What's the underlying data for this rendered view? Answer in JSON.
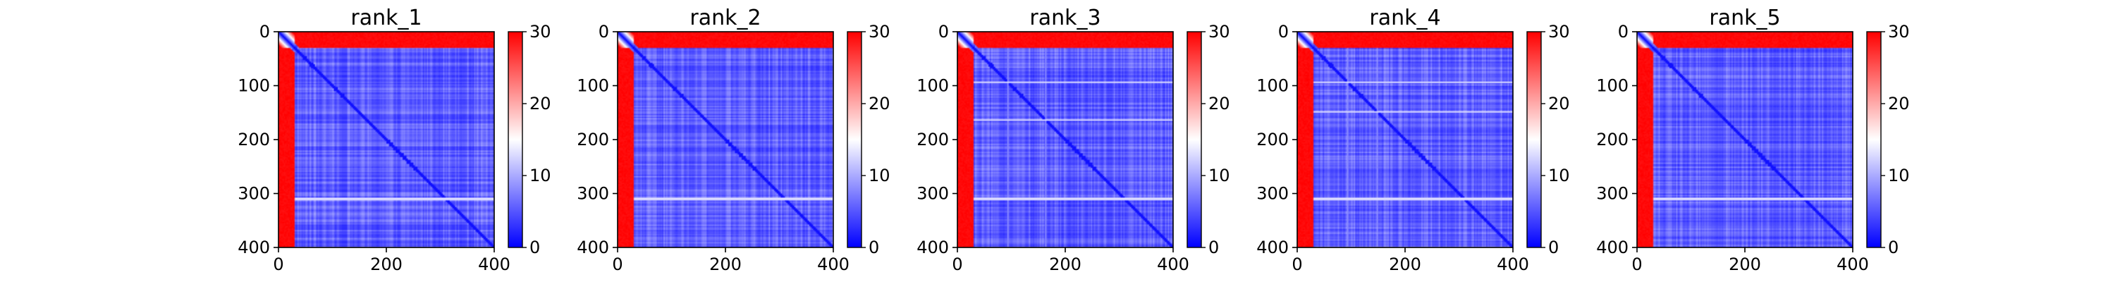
{
  "chart_data": [
    {
      "type": "heatmap",
      "title": "rank_1",
      "x_ticks": [
        0,
        200,
        400
      ],
      "y_ticks": [
        0,
        100,
        200,
        300,
        400
      ],
      "xlim": [
        0,
        400
      ],
      "ylim": [
        400,
        0
      ],
      "colorbar": {
        "range": [
          0,
          30
        ],
        "ticks": [
          0,
          10,
          20,
          30
        ],
        "colormap": "bwr"
      },
      "matrix_size": 400,
      "features": {
        "high_value_bands": [
          [
            0,
            30
          ]
        ],
        "bright_lines_y": [
          310
        ],
        "baseline_value": 4
      }
    },
    {
      "type": "heatmap",
      "title": "rank_2",
      "x_ticks": [
        0,
        200,
        400
      ],
      "y_ticks": [
        0,
        100,
        200,
        300,
        400
      ],
      "xlim": [
        0,
        400
      ],
      "ylim": [
        400,
        0
      ],
      "colorbar": {
        "range": [
          0,
          30
        ],
        "ticks": [
          0,
          10,
          20,
          30
        ],
        "colormap": "bwr"
      },
      "matrix_size": 400,
      "features": {
        "high_value_bands": [
          [
            0,
            30
          ]
        ],
        "bright_lines_y": [
          310
        ],
        "baseline_value": 4
      }
    },
    {
      "type": "heatmap",
      "title": "rank_3",
      "x_ticks": [
        0,
        200,
        400
      ],
      "y_ticks": [
        0,
        100,
        200,
        300,
        400
      ],
      "xlim": [
        0,
        400
      ],
      "ylim": [
        400,
        0
      ],
      "colorbar": {
        "range": [
          0,
          30
        ],
        "ticks": [
          0,
          10,
          20,
          30
        ],
        "colormap": "bwr"
      },
      "matrix_size": 400,
      "features": {
        "high_value_bands": [
          [
            0,
            30
          ]
        ],
        "bright_lines_y": [
          93,
          163,
          310
        ],
        "baseline_value": 4
      }
    },
    {
      "type": "heatmap",
      "title": "rank_4",
      "x_ticks": [
        0,
        200,
        400
      ],
      "y_ticks": [
        0,
        100,
        200,
        300,
        400
      ],
      "xlim": [
        0,
        400
      ],
      "ylim": [
        400,
        0
      ],
      "colorbar": {
        "range": [
          0,
          30
        ],
        "ticks": [
          0,
          10,
          20,
          30
        ],
        "colormap": "bwr"
      },
      "matrix_size": 400,
      "features": {
        "high_value_bands": [
          [
            0,
            30
          ]
        ],
        "bright_lines_y": [
          93,
          148,
          310
        ],
        "baseline_value": 4
      }
    },
    {
      "type": "heatmap",
      "title": "rank_5",
      "x_ticks": [
        0,
        200,
        400
      ],
      "y_ticks": [
        0,
        100,
        200,
        300,
        400
      ],
      "xlim": [
        0,
        400
      ],
      "ylim": [
        400,
        0
      ],
      "colorbar": {
        "range": [
          0,
          30
        ],
        "ticks": [
          0,
          10,
          20,
          30
        ],
        "colormap": "bwr"
      },
      "matrix_size": 400,
      "features": {
        "high_value_bands": [
          [
            0,
            30
          ]
        ],
        "bright_lines_y": [
          310
        ],
        "baseline_value": 4
      }
    }
  ]
}
